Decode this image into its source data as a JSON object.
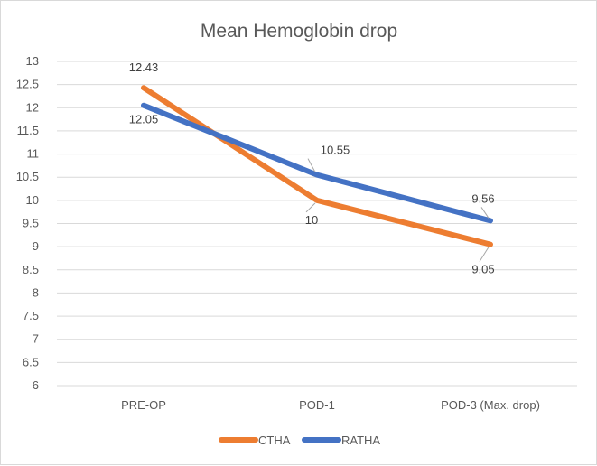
{
  "chart_data": {
    "type": "line",
    "title": "Mean Hemoglobin drop",
    "xlabel": "",
    "ylabel": "",
    "categories": [
      "PRE-OP",
      "POD-1",
      "POD-3 (Max. drop)"
    ],
    "ylim": [
      6,
      13
    ],
    "yticks": [
      6,
      6.5,
      7,
      7.5,
      8,
      8.5,
      9,
      9.5,
      10,
      10.5,
      11,
      11.5,
      12,
      12.5,
      13
    ],
    "grid": true,
    "legend_position": "bottom",
    "series": [
      {
        "name": "CTHA",
        "color": "#ED7D31",
        "values": [
          12.43,
          10,
          9.05
        ],
        "labels": [
          "12.43",
          "10",
          "9.05"
        ],
        "label_side": [
          "above",
          "below",
          "below"
        ]
      },
      {
        "name": "RATHA",
        "color": "#4472C4",
        "values": [
          12.05,
          10.55,
          9.56
        ],
        "labels": [
          "12.05",
          "10.55",
          "9.56"
        ],
        "label_side": [
          "below",
          "above",
          "above"
        ]
      }
    ]
  }
}
